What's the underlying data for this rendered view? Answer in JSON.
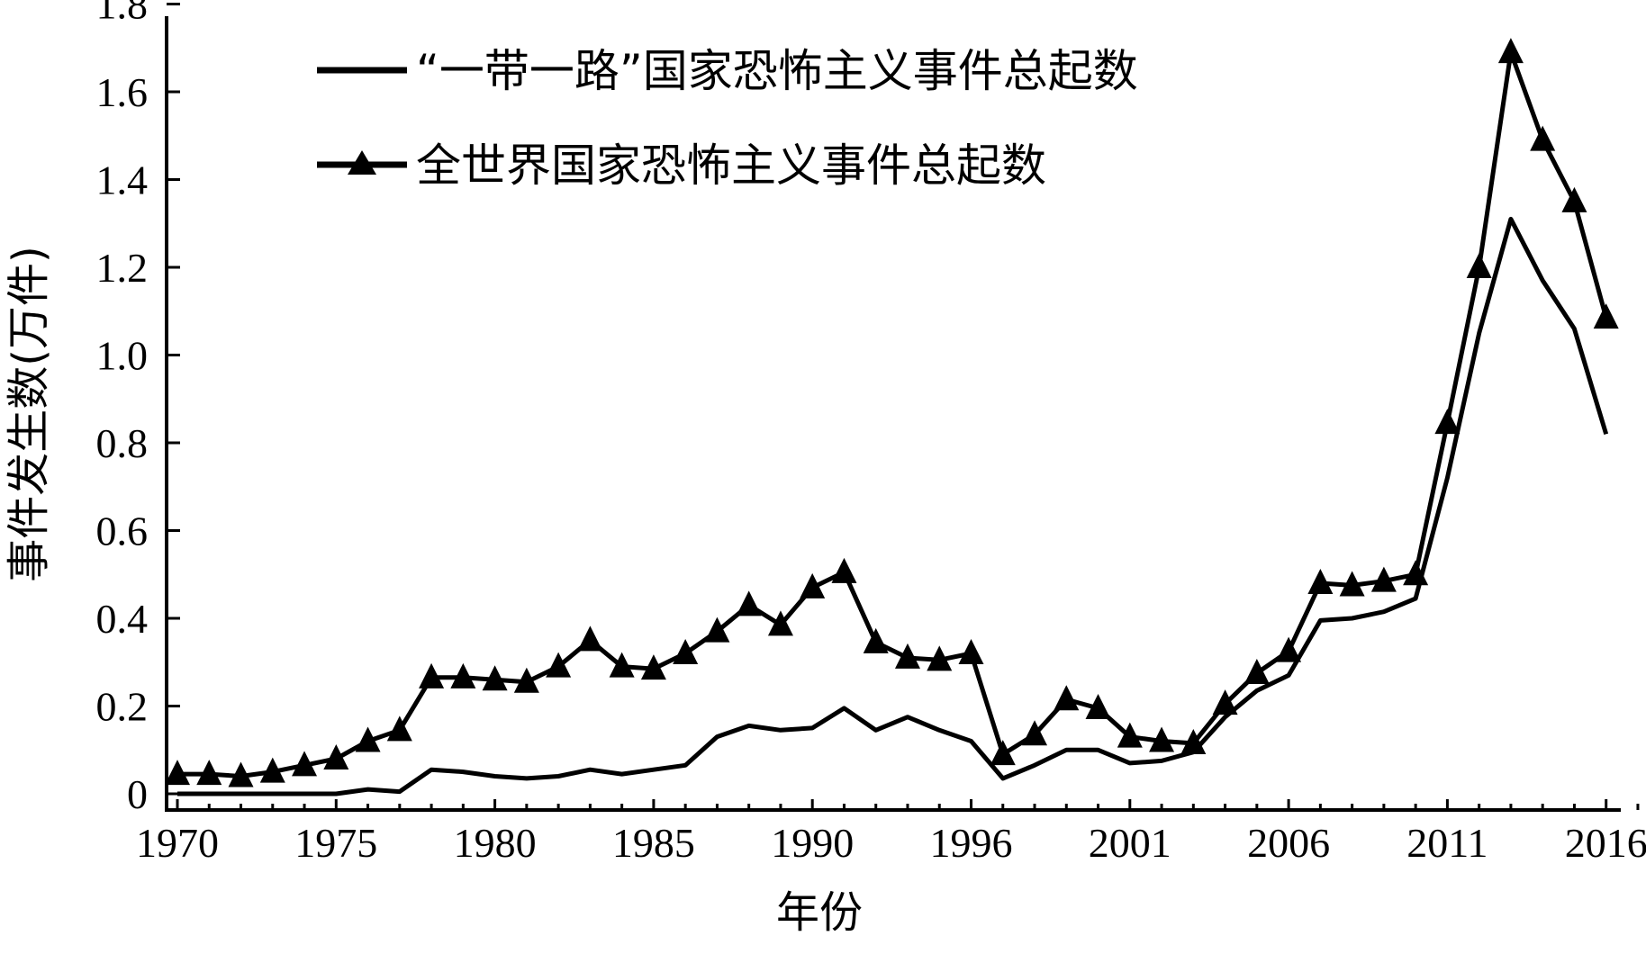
{
  "chart_data": {
    "type": "line",
    "xlabel": "年份",
    "ylabel": "事件发生数(万件)",
    "ylim": [
      0,
      1.8
    ],
    "yticks": [
      "0",
      "0.2",
      "0.4",
      "0.6",
      "0.8",
      "1.0",
      "1.2",
      "1.4",
      "1.6",
      "1.8"
    ],
    "xtick_labels": [
      "1970",
      "1975",
      "1980",
      "1985",
      "1990",
      "1996",
      "2001",
      "2006",
      "2011",
      "2016"
    ],
    "legend_position": "top-left",
    "x": [
      1970,
      1971,
      1972,
      1973,
      1974,
      1975,
      1976,
      1977,
      1978,
      1979,
      1980,
      1981,
      1982,
      1983,
      1984,
      1985,
      1986,
      1987,
      1988,
      1989,
      1990,
      1991,
      1992,
      1994,
      1995,
      1996,
      1997,
      1998,
      1999,
      2000,
      2001,
      2002,
      2003,
      2004,
      2005,
      2006,
      2007,
      2008,
      2009,
      2010,
      2011,
      2012,
      2013,
      2014,
      2015,
      2016,
      2017
    ],
    "series": [
      {
        "name": "“一带一路”国家恐怖主义事件总起数",
        "marker": "none",
        "values": [
          0.0,
          0.0,
          0.0,
          0.0,
          0.0,
          0.0,
          0.01,
          0.005,
          0.055,
          0.05,
          0.04,
          0.035,
          0.04,
          0.055,
          0.045,
          0.055,
          0.065,
          0.13,
          0.155,
          0.145,
          0.15,
          0.195,
          0.145,
          0.175,
          0.145,
          0.12,
          0.035,
          0.065,
          0.1,
          0.1,
          0.07,
          0.075,
          0.095,
          0.175,
          0.235,
          0.27,
          0.395,
          0.4,
          0.415,
          0.445,
          0.72,
          1.05,
          1.31,
          1.17,
          1.06,
          0.82,
          null
        ]
      },
      {
        "name": "全世界国家恐怖主义事件总起数",
        "marker": "triangle",
        "values": [
          0.045,
          0.045,
          0.04,
          0.05,
          0.065,
          0.08,
          0.12,
          0.145,
          0.265,
          0.265,
          0.26,
          0.255,
          0.29,
          0.35,
          0.29,
          0.285,
          0.32,
          0.37,
          0.43,
          0.385,
          0.47,
          0.505,
          0.345,
          0.31,
          0.305,
          0.32,
          0.09,
          0.135,
          0.215,
          0.195,
          0.13,
          0.12,
          0.115,
          0.205,
          0.275,
          0.325,
          0.48,
          0.475,
          0.485,
          0.5,
          0.845,
          1.2,
          1.69,
          1.49,
          1.35,
          1.085,
          null
        ]
      }
    ]
  }
}
